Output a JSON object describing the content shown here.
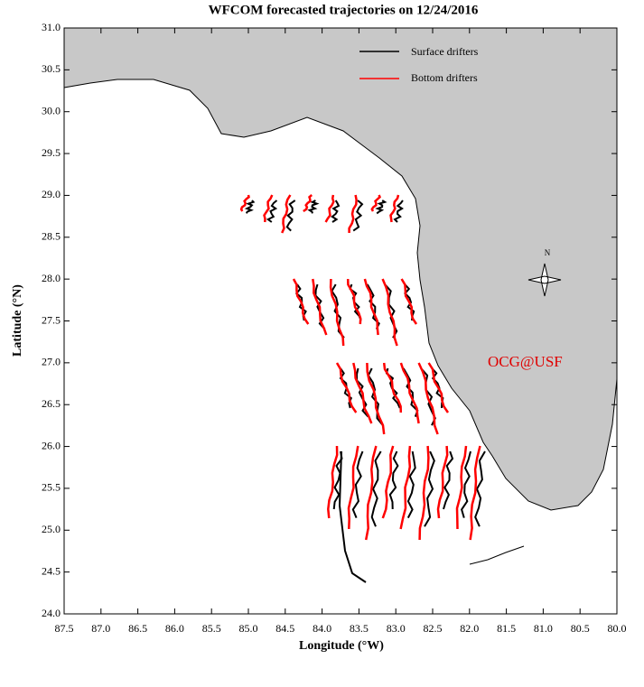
{
  "chart_data": {
    "type": "map",
    "title": "WFCOM forecasted trajectories on 12/24/2016",
    "xlabel": "Longitude (°W)",
    "ylabel": "Latitude (°N)",
    "xlim": [
      87.5,
      80
    ],
    "ylim": [
      24,
      31
    ],
    "xticks": [
      87.5,
      {
        "value": 87,
        "label": "87.0"
      },
      86.5,
      {
        "value": 86,
        "label": "86.0"
      },
      85.5,
      {
        "value": 85,
        "label": "85.0"
      },
      84.5,
      {
        "value": 84,
        "label": "84.0"
      },
      83.5,
      {
        "value": 83,
        "label": "83.0"
      },
      82.5,
      {
        "value": 82,
        "label": "82.0"
      },
      81.5,
      {
        "value": 81,
        "label": "81.0"
      },
      80.5,
      {
        "value": 80,
        "label": "80.0"
      }
    ],
    "yticks": [
      {
        "value": 24,
        "label": "24.0"
      },
      24.5,
      {
        "value": 25,
        "label": "25.0"
      },
      25.5,
      {
        "value": 26,
        "label": "26.0"
      },
      26.5,
      {
        "value": 27,
        "label": "27.0"
      },
      27.5,
      {
        "value": 28,
        "label": "28.0"
      },
      28.5,
      {
        "value": 29,
        "label": "29.0"
      },
      29.5,
      {
        "value": 30,
        "label": "30.0"
      },
      30.5,
      {
        "value": 31,
        "label": "31.0"
      }
    ],
    "series": [
      {
        "name": "Surface drifters",
        "color": "#000000"
      },
      {
        "name": "Bottom drifters",
        "color": "#ff0000"
      }
    ],
    "annotation": "OCG@USF",
    "compass_label": "N",
    "land_color": "#c8c8c8"
  }
}
